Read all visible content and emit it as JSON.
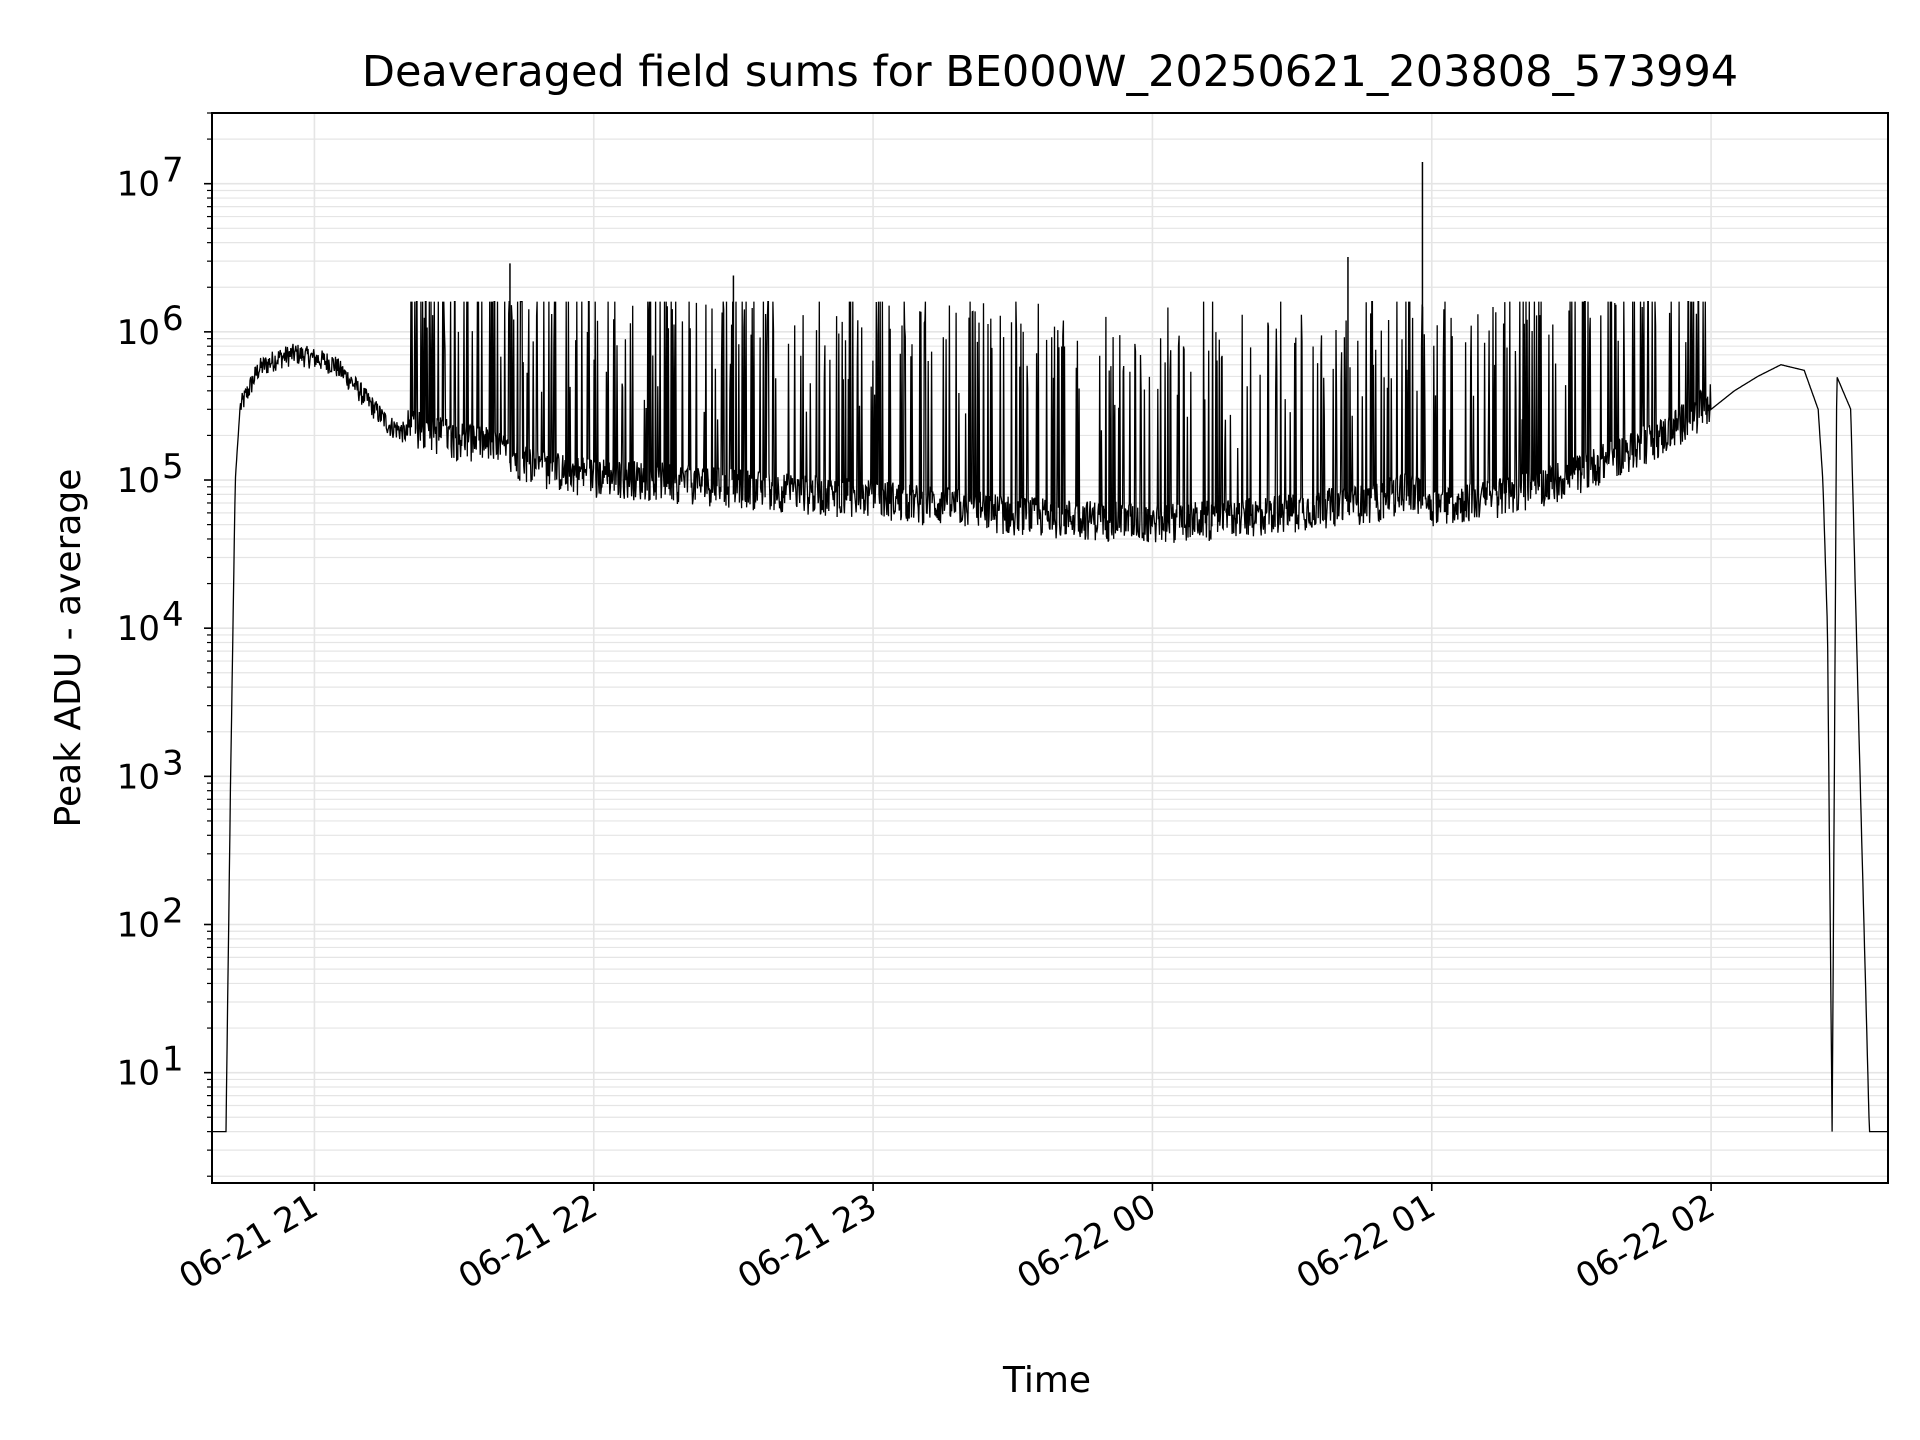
{
  "chart_data": {
    "type": "line",
    "title": "Deaveraged field sums for BE000W_20250621_203808_573994",
    "xlabel": "Time",
    "ylabel": "Peak ADU - average",
    "yscale": "log",
    "ylim": [
      1.8,
      30000000
    ],
    "xlim": [
      "2025-06-21 20:38",
      "2025-06-22 02:38"
    ],
    "x_ticks": [
      "06-21 21",
      "06-21 22",
      "06-21 23",
      "06-22 00",
      "06-22 01",
      "06-22 02"
    ],
    "y_ticks": [
      10,
      100,
      1000,
      10000,
      100000,
      1000000,
      10000000
    ],
    "y_tick_labels": [
      "10",
      "10",
      "10",
      "10",
      "10",
      "10",
      "10"
    ],
    "y_tick_exponents": [
      "1",
      "2",
      "3",
      "4",
      "5",
      "6",
      "7"
    ],
    "grid": true,
    "line_color": "#000000",
    "grid_color": "#e5e5e5",
    "series": [
      {
        "x": [
          "20:38",
          "20:40",
          "20:41",
          "20:42",
          "20:43",
          "20:44",
          "20:48",
          "20:52",
          "20:56",
          "21:00",
          "21:04",
          "21:08",
          "21:12",
          "21:16",
          "21:20",
          "21:24",
          "21:30",
          "21:36",
          "21:42",
          "21:48",
          "21:54",
          "22:00",
          "22:10",
          "22:20",
          "22:30",
          "22:40",
          "22:50",
          "23:00",
          "23:10",
          "23:20",
          "23:30",
          "23:40",
          "23:50",
          "00:00",
          "00:10",
          "00:20",
          "00:30",
          "00:40",
          "00:45",
          "00:50",
          "00:55",
          "01:00",
          "01:10",
          "01:20",
          "01:30",
          "01:40",
          "01:50",
          "02:00",
          "02:05",
          "02:10",
          "02:15",
          "02:20",
          "02:23",
          "02:24",
          "02:25",
          "02:26",
          "02:27",
          "02:30",
          "02:32",
          "02:34",
          "02:35",
          "02:38"
        ],
        "y": [
          4,
          4,
          4,
          1000,
          100000,
          300000,
          550000,
          650000,
          700000,
          650000,
          600000,
          450000,
          320000,
          230000,
          200000,
          190000,
          170000,
          160000,
          130000,
          110000,
          100000,
          95000,
          90000,
          85000,
          80000,
          75000,
          70000,
          68000,
          62000,
          58000,
          52000,
          50000,
          48000,
          46000,
          48000,
          50000,
          55000,
          60000,
          62000,
          65000,
          80000,
          60000,
          65000,
          75000,
          95000,
          130000,
          180000,
          300000,
          400000,
          500000,
          600000,
          550000,
          300000,
          100000,
          10000,
          4,
          500000,
          300000,
          1000,
          4,
          4,
          4
        ]
      }
    ],
    "spikes": [
      {
        "x": "21:42",
        "y": 2900000
      },
      {
        "x": "22:30",
        "y": 2400000
      },
      {
        "x": "00:42",
        "y": 3200000
      },
      {
        "x": "00:58",
        "y": 14000000
      }
    ],
    "noise_band": {
      "start": "21:20",
      "end": "02:00",
      "upper": 1600000
    }
  }
}
